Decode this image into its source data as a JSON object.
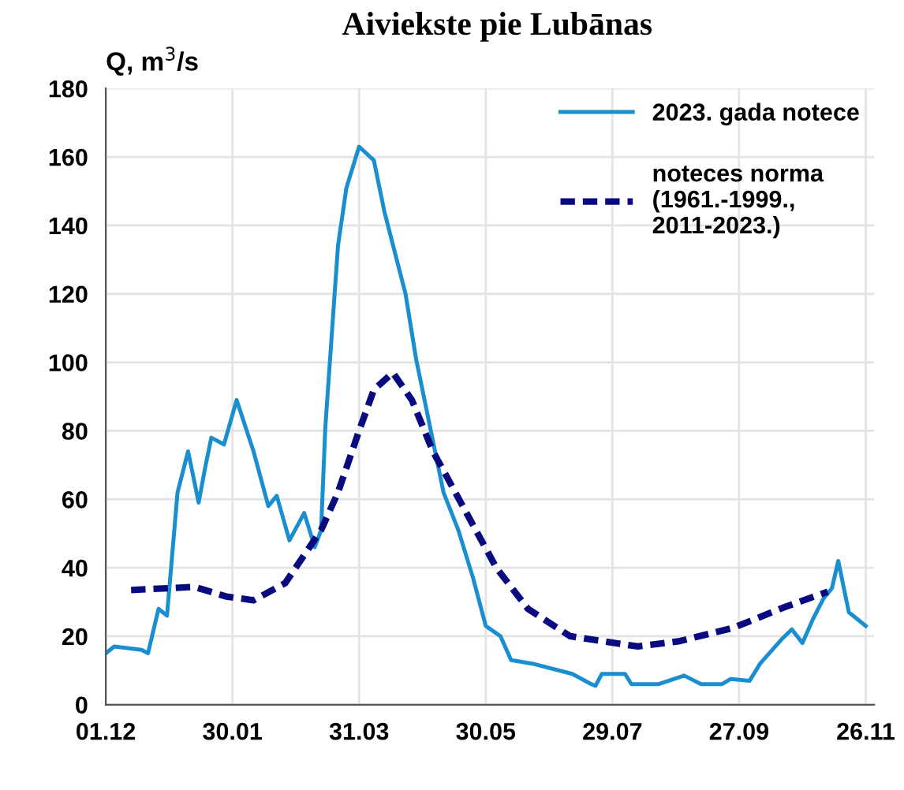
{
  "chart_data": {
    "type": "line",
    "title": "Aiviekste pie Lubānas",
    "ylabel": "Q, m$^{3}$/s",
    "xlim": [
      "2022-12-01",
      "2023-11-30"
    ],
    "xticks": [
      {
        "value": "2022-12-01",
        "label": "01.12"
      },
      {
        "value": "2023-01-30",
        "label": "30.01"
      },
      {
        "value": "2023-03-31",
        "label": "31.03"
      },
      {
        "value": "2023-05-30",
        "label": "30.05"
      },
      {
        "value": "2023-07-29",
        "label": "29.07"
      },
      {
        "value": "2023-09-27",
        "label": "27.09"
      },
      {
        "value": "2023-11-26",
        "label": "26.11"
      }
    ],
    "ylim": [
      0,
      180
    ],
    "yticks": [
      0,
      20,
      40,
      60,
      80,
      100,
      120,
      140,
      160,
      180
    ],
    "grid": true,
    "legend": "top right",
    "series": [
      {
        "name": "2023. gada notece",
        "color": "#1a8fd0",
        "line_style": "solid",
        "x": [
          "2022-12-01",
          "2022-12-05",
          "2022-12-18",
          "2022-12-21",
          "2022-12-26",
          "2022-12-30",
          "2023-01-04",
          "2023-01-09",
          "2023-01-14",
          "2023-01-17",
          "2023-01-20",
          "2023-01-26",
          "2023-02-01",
          "2023-02-09",
          "2023-02-16",
          "2023-02-20",
          "2023-02-26",
          "2023-03-05",
          "2023-03-10",
          "2023-03-13",
          "2023-03-15",
          "2023-03-21",
          "2023-03-25",
          "2023-03-31",
          "2023-04-07",
          "2023-04-12",
          "2023-04-22",
          "2023-04-27",
          "2023-05-04",
          "2023-05-10",
          "2023-05-17",
          "2023-05-24",
          "2023-05-30",
          "2023-06-06",
          "2023-06-11",
          "2023-06-21",
          "2023-07-10",
          "2023-07-19",
          "2023-07-21",
          "2023-07-24",
          "2023-08-04",
          "2023-08-07",
          "2023-08-20",
          "2023-09-01",
          "2023-09-09",
          "2023-09-19",
          "2023-09-23",
          "2023-10-02",
          "2023-10-07",
          "2023-10-17",
          "2023-10-22",
          "2023-10-27",
          "2023-11-01",
          "2023-11-06",
          "2023-11-10",
          "2023-11-13",
          "2023-11-18",
          "2023-11-26"
        ],
        "values": [
          15,
          17,
          16,
          15,
          28,
          26,
          62,
          74,
          59,
          69,
          78,
          76,
          89,
          74,
          58,
          61,
          48,
          56,
          46,
          51,
          81,
          134,
          151,
          163,
          159,
          144,
          120,
          101,
          80,
          62,
          51,
          37,
          23,
          20,
          13,
          12,
          9,
          6,
          5.5,
          9,
          9,
          6,
          6,
          8.5,
          6,
          6,
          7.5,
          7,
          12,
          19,
          22,
          18,
          25,
          31,
          34,
          42,
          27,
          23
        ]
      },
      {
        "name": "noteces norma\n(1961.-1999.,\n2011-2023.)",
        "color": "#0a0a80",
        "line_style": "dashed",
        "x": [
          "2022-12-13",
          "2023-01-12",
          "2023-01-27",
          "2023-02-09",
          "2023-02-24",
          "2023-03-13",
          "2023-03-21",
          "2023-03-31",
          "2023-04-07",
          "2023-04-16",
          "2023-04-25",
          "2023-05-05",
          "2023-05-20",
          "2023-06-04",
          "2023-06-19",
          "2023-07-09",
          "2023-07-24",
          "2023-08-10",
          "2023-08-30",
          "2023-09-24",
          "2023-10-19",
          "2023-11-08"
        ],
        "values": [
          33.5,
          34.4,
          31.6,
          30.5,
          35.5,
          51,
          62,
          80,
          92,
          97,
          89,
          74,
          57,
          40,
          28,
          20,
          18.6,
          17,
          18.6,
          22.4,
          28.6,
          33
        ]
      }
    ]
  }
}
